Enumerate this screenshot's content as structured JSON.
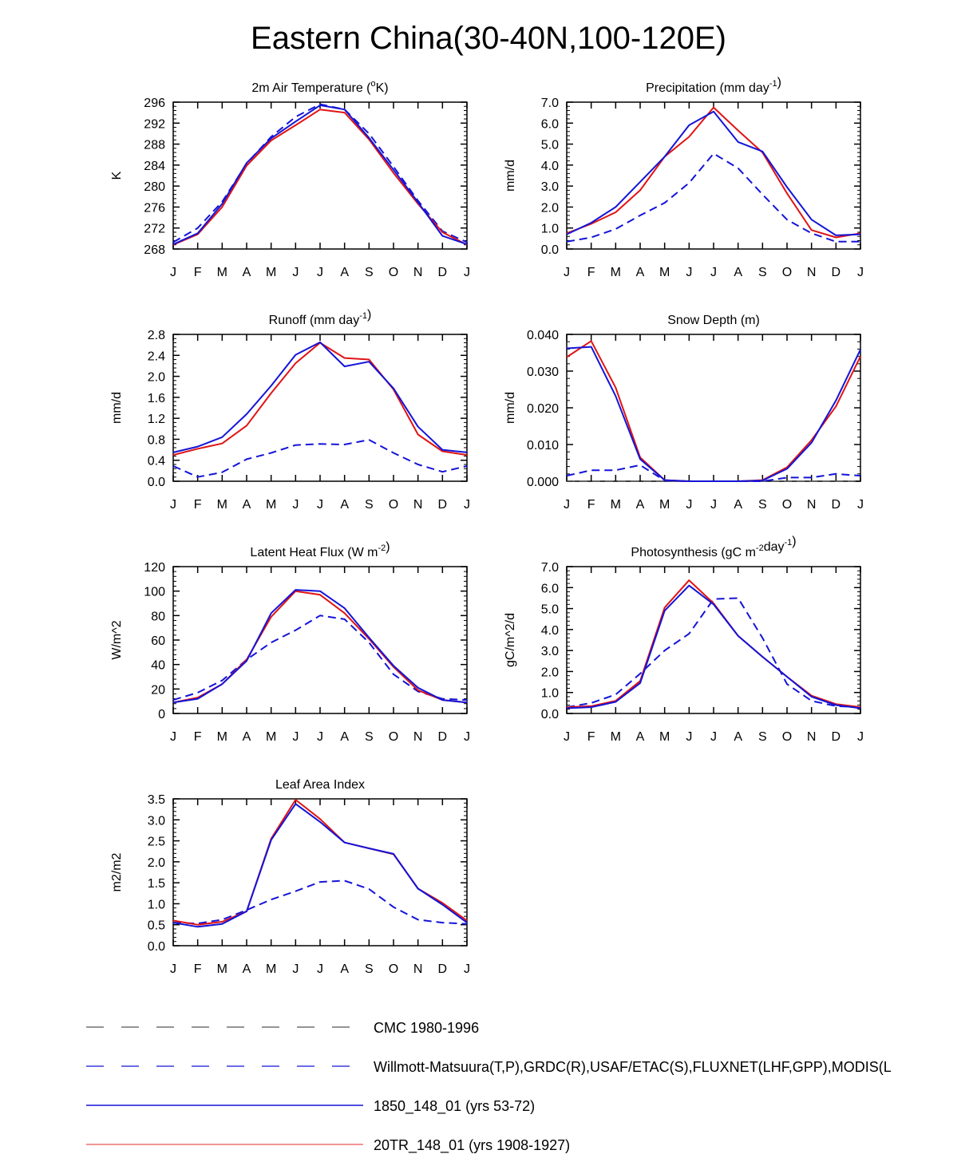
{
  "title": "Eastern China(30-40N,100-120E)",
  "colors": {
    "model_a": "#1414d8",
    "model_b": "#e01414",
    "obs": "#1414d8",
    "cmc": "#555555"
  },
  "legend": [
    {
      "label": "CMC 1980-1996",
      "color": "#555555",
      "dash": true
    },
    {
      "label": "Willmott-Matsuura(T,P),GRDC(R),USAF/ETAC(S),FLUXNET(LHF,GPP),MODIS(L",
      "color": "#1414d8",
      "dash": true
    },
    {
      "label": "1850_148_01 (yrs 53-72)",
      "color": "#1414d8",
      "dash": false
    },
    {
      "label": "20TR_148_01 (yrs 1908-1927)",
      "color": "#f07070",
      "dash": false
    }
  ],
  "chart_data": [
    {
      "type": "line",
      "title": "2m Air Temperature (°K)",
      "ylabel": "K",
      "ylim": [
        268,
        296
      ],
      "yticks": [
        "268",
        "272",
        "276",
        "280",
        "284",
        "288",
        "292",
        "296"
      ],
      "categories": [
        "J",
        "F",
        "M",
        "A",
        "M",
        "J",
        "J",
        "A",
        "S",
        "O",
        "N",
        "D",
        "J"
      ],
      "series": [
        {
          "name": "Willmott-Matsuura(T,P),GRDC(R),USAF/ETAC(S),FLUXNET(LHF,GPP),MODIS(L",
          "role": "obs",
          "values": [
            269.3,
            272.0,
            277.0,
            284.3,
            289.4,
            293.2,
            295.6,
            294.6,
            290.0,
            283.7,
            277.2,
            271.4,
            269.3
          ]
        },
        {
          "name": "20TR_148_01 (yrs 1908-1927)",
          "role": "model_b",
          "values": [
            268.8,
            270.8,
            276.0,
            283.9,
            288.7,
            291.6,
            294.6,
            294.0,
            288.9,
            282.5,
            276.6,
            271.2,
            268.8
          ]
        },
        {
          "name": "1850_148_01 (yrs 53-72)",
          "role": "model_a",
          "values": [
            268.9,
            271.0,
            276.6,
            284.4,
            289.1,
            292.3,
            295.4,
            294.6,
            289.2,
            283.1,
            276.9,
            270.5,
            268.9
          ]
        }
      ]
    },
    {
      "type": "line",
      "title": "Precipitation (mm day-1)",
      "ylabel": "mm/d",
      "ylim": [
        0,
        7
      ],
      "yticks": [
        "0.0",
        "1.0",
        "2.0",
        "3.0",
        "4.0",
        "5.0",
        "6.0",
        "7.0"
      ],
      "categories": [
        "J",
        "F",
        "M",
        "A",
        "M",
        "J",
        "J",
        "A",
        "S",
        "O",
        "N",
        "D",
        "J"
      ],
      "series": [
        {
          "name": "Willmott-Matsuura(T,P),GRDC(R),USAF/ETAC(S),FLUXNET(LHF,GPP),MODIS(L",
          "role": "obs",
          "values": [
            0.35,
            0.55,
            0.95,
            1.6,
            2.2,
            3.15,
            4.55,
            3.85,
            2.6,
            1.4,
            0.75,
            0.35,
            0.35
          ]
        },
        {
          "name": "20TR_148_01 (yrs 1908-1927)",
          "role": "model_b",
          "values": [
            0.75,
            1.2,
            1.75,
            2.8,
            4.4,
            5.35,
            6.75,
            5.65,
            4.6,
            2.65,
            0.9,
            0.55,
            0.75
          ]
        },
        {
          "name": "1850_148_01 (yrs 53-72)",
          "role": "model_a",
          "values": [
            0.7,
            1.25,
            2.0,
            3.2,
            4.4,
            5.9,
            6.55,
            5.1,
            4.65,
            2.95,
            1.4,
            0.65,
            0.7
          ]
        }
      ]
    },
    {
      "type": "line",
      "title": "Runoff (mm day-1)",
      "ylabel": "mm/d",
      "ylim": [
        0,
        2.8
      ],
      "yticks": [
        "0.0",
        "0.4",
        "0.8",
        "1.2",
        "1.6",
        "2.0",
        "2.4",
        "2.8"
      ],
      "categories": [
        "J",
        "F",
        "M",
        "A",
        "M",
        "J",
        "J",
        "A",
        "S",
        "O",
        "N",
        "D",
        "J"
      ],
      "series": [
        {
          "name": "Willmott-Matsuura(T,P),GRDC(R),USAF/ETAC(S),FLUXNET(LHF,GPP),MODIS(L",
          "role": "obs",
          "values": [
            0.29,
            0.08,
            0.17,
            0.42,
            0.54,
            0.69,
            0.71,
            0.7,
            0.79,
            0.54,
            0.32,
            0.18,
            0.29
          ]
        },
        {
          "name": "20TR_148_01 (yrs 1908-1927)",
          "role": "model_b",
          "values": [
            0.5,
            0.62,
            0.72,
            1.06,
            1.68,
            2.25,
            2.64,
            2.35,
            2.32,
            1.75,
            0.89,
            0.57,
            0.5
          ]
        },
        {
          "name": "1850_148_01 (yrs 53-72)",
          "role": "model_a",
          "values": [
            0.55,
            0.66,
            0.84,
            1.28,
            1.82,
            2.41,
            2.65,
            2.19,
            2.28,
            1.77,
            1.04,
            0.6,
            0.55
          ]
        }
      ]
    },
    {
      "type": "line",
      "title": "Snow Depth (m)",
      "ylabel": "mm/d",
      "ylim": [
        0,
        0.04
      ],
      "yticks": [
        "0.000",
        "0.010",
        "0.020",
        "0.030",
        "0.040"
      ],
      "categories": [
        "J",
        "F",
        "M",
        "A",
        "M",
        "J",
        "J",
        "A",
        "S",
        "O",
        "N",
        "D",
        "J"
      ],
      "series": [
        {
          "name": "CMC 1980-1996",
          "role": "cmc",
          "values": [
            0,
            0,
            0,
            0,
            0,
            0,
            0,
            0,
            0,
            0,
            0,
            0,
            0
          ]
        },
        {
          "name": "Willmott-Matsuura(T,P),GRDC(R),USAF/ETAC(S),FLUXNET(LHF,GPP),MODIS(L",
          "role": "obs",
          "values": [
            0.0015,
            0.003,
            0.003,
            0.0044,
            0.0002,
            0.0,
            0.0,
            0.0,
            0.0,
            0.001,
            0.001,
            0.002,
            0.0015
          ]
        },
        {
          "name": "20TR_148_01 (yrs 1908-1927)",
          "role": "model_b",
          "values": [
            0.0338,
            0.0382,
            0.0255,
            0.0065,
            0.0003,
            0.0,
            0.0,
            0.0,
            0.0003,
            0.0038,
            0.0112,
            0.0204,
            0.034
          ]
        },
        {
          "name": "1850_148_01 (yrs 53-72)",
          "role": "model_a",
          "values": [
            0.0362,
            0.0366,
            0.0232,
            0.006,
            0.0003,
            0.0,
            0.0,
            0.0,
            0.0002,
            0.0034,
            0.0105,
            0.022,
            0.0359
          ]
        }
      ]
    },
    {
      "type": "line",
      "title": "Latent Heat Flux (W m-2)",
      "ylabel": "W/m^2",
      "ylim": [
        0,
        120
      ],
      "yticks": [
        "0",
        "20",
        "40",
        "60",
        "80",
        "100",
        "120"
      ],
      "categories": [
        "J",
        "F",
        "M",
        "A",
        "M",
        "J",
        "J",
        "A",
        "S",
        "O",
        "N",
        "D",
        "J"
      ],
      "series": [
        {
          "name": "Willmott-Matsuura(T,P),GRDC(R),USAF/ETAC(S),FLUXNET(LHF,GPP),MODIS(L",
          "role": "obs",
          "values": [
            11,
            17,
            27,
            44,
            58,
            68,
            80,
            77,
            58,
            32,
            18,
            12,
            11
          ]
        },
        {
          "name": "20TR_148_01 (yrs 1908-1927)",
          "role": "model_b",
          "values": [
            9,
            13,
            24,
            44,
            79,
            100,
            97,
            82,
            61,
            38,
            19,
            11,
            9
          ]
        },
        {
          "name": "1850_148_01 (yrs 53-72)",
          "role": "model_a",
          "values": [
            9,
            12,
            24,
            43,
            82,
            101,
            100,
            86,
            62,
            39,
            21,
            11,
            9
          ]
        }
      ]
    },
    {
      "type": "line",
      "title": "Photosynthesis (gC m-2day-1)",
      "ylabel": "gC/m^2/d",
      "ylim": [
        0,
        7
      ],
      "yticks": [
        "0.0",
        "1.0",
        "2.0",
        "3.0",
        "4.0",
        "5.0",
        "6.0",
        "7.0"
      ],
      "categories": [
        "J",
        "F",
        "M",
        "A",
        "M",
        "J",
        "J",
        "A",
        "S",
        "O",
        "N",
        "D",
        "J"
      ],
      "series": [
        {
          "name": "Willmott-Matsuura(T,P),GRDC(R),USAF/ETAC(S),FLUXNET(LHF,GPP),MODIS(L",
          "role": "obs",
          "values": [
            0.3,
            0.5,
            0.9,
            1.9,
            3.0,
            3.8,
            5.45,
            5.5,
            3.6,
            1.4,
            0.6,
            0.35,
            0.3
          ]
        },
        {
          "name": "20TR_148_01 (yrs 1908-1927)",
          "role": "model_b",
          "values": [
            0.3,
            0.35,
            0.6,
            1.55,
            5.05,
            6.35,
            5.25,
            3.7,
            2.7,
            1.75,
            0.85,
            0.45,
            0.3
          ]
        },
        {
          "name": "1850_148_01 (yrs 53-72)",
          "role": "model_a",
          "values": [
            0.25,
            0.3,
            0.55,
            1.45,
            4.9,
            6.1,
            5.2,
            3.7,
            2.7,
            1.75,
            0.8,
            0.4,
            0.25
          ]
        }
      ]
    },
    {
      "type": "line",
      "title": "Leaf Area Index",
      "ylabel": "m2/m2",
      "ylim": [
        0,
        3.5
      ],
      "yticks": [
        "0.0",
        "0.5",
        "1.0",
        "1.5",
        "2.0",
        "2.5",
        "3.0",
        "3.5"
      ],
      "categories": [
        "J",
        "F",
        "M",
        "A",
        "M",
        "J",
        "J",
        "A",
        "S",
        "O",
        "N",
        "D",
        "J"
      ],
      "series": [
        {
          "name": "Willmott-Matsuura(T,P),GRDC(R),USAF/ETAC(S),FLUXNET(LHF,GPP),MODIS(L",
          "role": "obs",
          "values": [
            0.55,
            0.53,
            0.62,
            0.85,
            1.1,
            1.3,
            1.52,
            1.55,
            1.35,
            0.92,
            0.62,
            0.55,
            0.52
          ]
        },
        {
          "name": "20TR_148_01 (yrs 1908-1927)",
          "role": "model_b",
          "values": [
            0.6,
            0.5,
            0.57,
            0.82,
            2.55,
            3.48,
            3.02,
            2.46,
            2.32,
            2.18,
            1.36,
            1.02,
            0.6
          ]
        },
        {
          "name": "1850_148_01 (yrs 53-72)",
          "role": "model_a",
          "values": [
            0.55,
            0.45,
            0.52,
            0.82,
            2.52,
            3.38,
            2.95,
            2.46,
            2.32,
            2.19,
            1.36,
            0.98,
            0.55
          ]
        }
      ]
    }
  ]
}
